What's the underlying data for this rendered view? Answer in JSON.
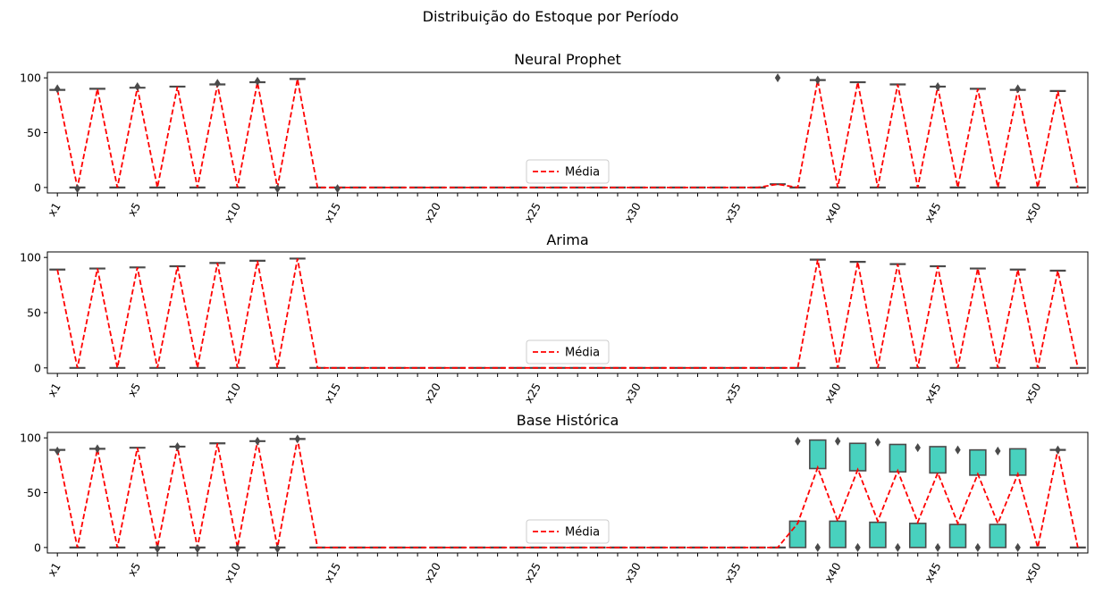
{
  "suptitle": "Distribuição do Estoque por Período",
  "colors": {
    "mean_line": "#ff0000",
    "box_face": "#48d1be",
    "box_edge": "#4a4a4a"
  },
  "chart_data": [
    {
      "type": "box",
      "title": "Neural Prophet",
      "legend": {
        "label": "Média",
        "placement": "lower-center"
      },
      "ylim": [
        -5,
        105
      ],
      "yticks": [
        0,
        50,
        100
      ],
      "xtick_labels": [
        "x1",
        "x5",
        "x10",
        "x15",
        "x20",
        "x25",
        "x30",
        "x35",
        "x40",
        "x45",
        "x50"
      ],
      "xtick_positions": [
        1,
        5,
        10,
        15,
        20,
        25,
        30,
        35,
        40,
        45,
        50
      ],
      "mean": [
        89,
        0,
        90,
        0,
        91,
        0,
        92,
        0,
        94,
        0,
        96,
        0,
        99,
        0,
        0,
        0,
        0,
        0,
        0,
        0,
        0,
        0,
        0,
        0,
        0,
        0,
        0,
        0,
        0,
        0,
        0,
        0,
        0,
        0,
        0,
        0,
        3,
        0,
        98,
        0,
        96,
        0,
        94,
        0,
        92,
        0,
        90,
        0,
        89,
        0,
        88,
        0
      ],
      "boxes": [],
      "outliers": [
        [
          1,
          90
        ],
        [
          2,
          -1
        ],
        [
          5,
          92
        ],
        [
          9,
          95
        ],
        [
          11,
          97
        ],
        [
          12,
          -1
        ],
        [
          15,
          -1
        ],
        [
          37,
          100
        ],
        [
          39,
          98
        ],
        [
          45,
          92
        ],
        [
          49,
          90
        ]
      ]
    },
    {
      "type": "box",
      "title": "Arima",
      "legend": {
        "label": "Média",
        "placement": "lower-center"
      },
      "ylim": [
        -5,
        105
      ],
      "yticks": [
        0,
        50,
        100
      ],
      "xtick_labels": [
        "x1",
        "x5",
        "x10",
        "x15",
        "x20",
        "x25",
        "x30",
        "x35",
        "x40",
        "x45",
        "x50"
      ],
      "xtick_positions": [
        1,
        5,
        10,
        15,
        20,
        25,
        30,
        35,
        40,
        45,
        50
      ],
      "mean": [
        89,
        0,
        90,
        0,
        91,
        0,
        92,
        0,
        95,
        0,
        97,
        0,
        99,
        0,
        0,
        0,
        0,
        0,
        0,
        0,
        0,
        0,
        0,
        0,
        0,
        0,
        0,
        0,
        0,
        0,
        0,
        0,
        0,
        0,
        0,
        0,
        0,
        0,
        98,
        0,
        96,
        0,
        94,
        0,
        92,
        0,
        90,
        0,
        89,
        0,
        88,
        0
      ],
      "boxes": [],
      "outliers": []
    },
    {
      "type": "box",
      "title": "Base Histórica",
      "legend": {
        "label": "Média",
        "placement": "lower-center"
      },
      "ylim": [
        -5,
        105
      ],
      "yticks": [
        0,
        50,
        100
      ],
      "xtick_labels": [
        "x1",
        "x5",
        "x10",
        "x15",
        "x20",
        "x25",
        "x30",
        "x35",
        "x40",
        "x45",
        "x50"
      ],
      "xtick_positions": [
        1,
        5,
        10,
        15,
        20,
        25,
        30,
        35,
        40,
        45,
        50
      ],
      "mean": [
        89,
        0,
        90,
        0,
        91,
        0,
        92,
        0,
        95,
        0,
        97,
        0,
        99,
        0,
        0,
        0,
        0,
        0,
        0,
        0,
        0,
        0,
        0,
        0,
        0,
        0,
        0,
        0,
        0,
        0,
        0,
        0,
        0,
        0,
        0,
        0,
        0,
        22,
        73,
        24,
        71,
        24,
        70,
        23,
        68,
        22,
        67,
        22,
        67,
        0,
        89,
        0
      ],
      "boxes": [
        [
          38,
          0,
          24
        ],
        [
          39,
          72,
          98
        ],
        [
          40,
          0,
          24
        ],
        [
          41,
          70,
          95
        ],
        [
          42,
          0,
          23
        ],
        [
          43,
          69,
          94
        ],
        [
          44,
          0,
          22
        ],
        [
          45,
          68,
          92
        ],
        [
          46,
          0,
          21
        ],
        [
          47,
          66,
          89
        ],
        [
          48,
          0,
          21
        ],
        [
          49,
          66,
          90
        ]
      ],
      "outliers": [
        [
          1,
          88
        ],
        [
          3,
          90
        ],
        [
          6,
          -1
        ],
        [
          7,
          92
        ],
        [
          8,
          -1
        ],
        [
          10,
          -1
        ],
        [
          11,
          97
        ],
        [
          12,
          -1
        ],
        [
          13,
          99
        ],
        [
          38,
          97
        ],
        [
          39,
          0
        ],
        [
          40,
          97
        ],
        [
          41,
          0
        ],
        [
          42,
          96
        ],
        [
          43,
          0
        ],
        [
          44,
          91
        ],
        [
          45,
          0
        ],
        [
          46,
          89
        ],
        [
          47,
          0
        ],
        [
          48,
          88
        ],
        [
          49,
          0
        ],
        [
          51,
          89
        ]
      ]
    }
  ]
}
